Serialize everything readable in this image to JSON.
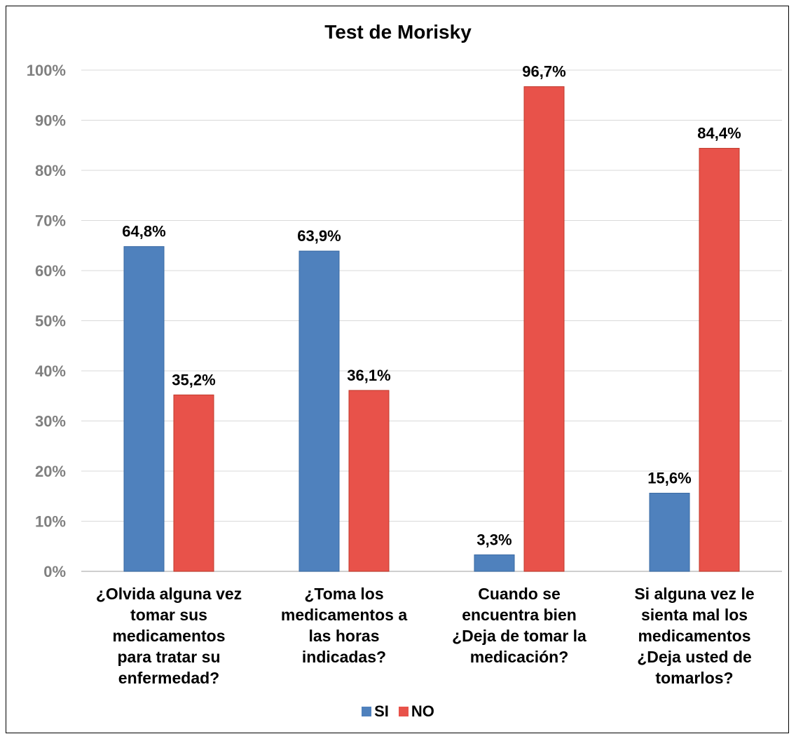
{
  "chart_data": {
    "type": "bar",
    "title": "Test de Morisky",
    "categories": [
      "¿Olvida alguna vez\ntomar sus\nmedicamentos\npara tratar su\nenfermedad?",
      "¿Toma los\nmedicamentos a\nlas horas\nindicadas?",
      "Cuando se\nencuentra bien\n¿Deja de tomar la\nmedicación?",
      "Si alguna vez le\nsienta mal los\nmedicamentos\n¿Deja usted de\ntomarlos?"
    ],
    "series": [
      {
        "name": "SI",
        "color": "#4F81BD",
        "values": [
          64.8,
          63.9,
          3.3,
          15.6
        ],
        "labels": [
          "64,8%",
          "63,9%",
          "3,3%",
          "15,6%"
        ]
      },
      {
        "name": "NO",
        "color": "#E8524A",
        "values": [
          35.2,
          36.1,
          96.7,
          84.4
        ],
        "labels": [
          "35,2%",
          "36,1%",
          "96,7%",
          "84,4%"
        ]
      }
    ],
    "ylim": [
      0,
      100
    ],
    "yticks": [
      "0%",
      "10%",
      "20%",
      "30%",
      "40%",
      "50%",
      "60%",
      "70%",
      "80%",
      "90%",
      "100%"
    ],
    "grid": true,
    "legend_position": "bottom"
  }
}
